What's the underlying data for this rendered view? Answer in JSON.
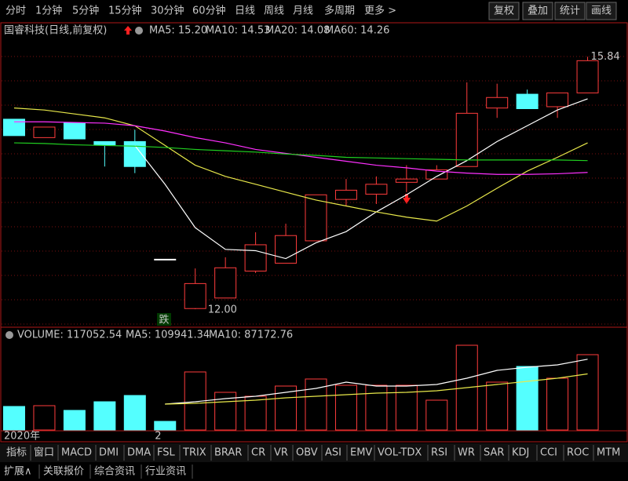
{
  "toolbar": {
    "periods": [
      "分时",
      "1分钟",
      "5分钟",
      "15分钟",
      "30分钟",
      "60分钟",
      "日线",
      "周线",
      "月线",
      "多周期",
      "更多 >"
    ],
    "active": "日线",
    "actions": [
      "复权",
      "叠加",
      "统计",
      "画线"
    ]
  },
  "chart_data": {
    "type": "candlestick",
    "title": "国睿科技(日线,前复权)",
    "up_color": "#ff3c3c",
    "down_color": "#54ffff",
    "flat_color": "#ffffff",
    "dates": [
      "2020年",
      null,
      null,
      null,
      null,
      "2",
      null,
      null,
      null,
      null,
      null,
      null,
      null,
      null,
      null,
      null,
      null,
      null,
      null,
      null
    ],
    "candles": [
      {
        "open": 14.89,
        "high": 14.89,
        "low": 14.64,
        "close": 14.64
      },
      {
        "open": 14.61,
        "high": 14.77,
        "low": 14.61,
        "close": 14.77
      },
      {
        "open": 14.83,
        "high": 14.83,
        "low": 14.59,
        "close": 14.59
      },
      {
        "open": 14.55,
        "high": 14.55,
        "low": 14.17,
        "close": 14.5
      },
      {
        "open": 14.55,
        "high": 14.73,
        "low": 14.07,
        "close": 14.17
      },
      {
        "open": 12.76,
        "high": 12.76,
        "low": 12.76,
        "close": 12.76
      },
      {
        "open": 12.01,
        "high": 12.62,
        "low": 12,
        "close": 12.39
      },
      {
        "open": 12.17,
        "high": 12.79,
        "low": 12.17,
        "close": 12.63
      },
      {
        "open": 12.58,
        "high": 13.17,
        "low": 12.55,
        "close": 12.98
      },
      {
        "open": 12.7,
        "high": 13.3,
        "low": 12.7,
        "close": 13.12
      },
      {
        "open": 13.04,
        "high": 13.74,
        "low": 13.04,
        "close": 13.74
      },
      {
        "open": 13.67,
        "high": 13.98,
        "low": 13.57,
        "close": 13.81
      },
      {
        "open": 13.75,
        "high": 14.02,
        "low": 13.6,
        "close": 13.9
      },
      {
        "open": 13.93,
        "high": 14.19,
        "low": 13.78,
        "close": 13.98
      },
      {
        "open": 13.98,
        "high": 14.19,
        "low": 13.98,
        "close": 14.12
      },
      {
        "open": 14.17,
        "high": 15.45,
        "low": 14.17,
        "close": 14.98
      },
      {
        "open": 15.06,
        "high": 15.43,
        "low": 14.91,
        "close": 15.22
      },
      {
        "open": 15.27,
        "high": 15.34,
        "low": 15.05,
        "close": 15.05
      },
      {
        "open": 15.08,
        "high": 15.29,
        "low": 14.91,
        "close": 15.29
      },
      {
        "open": 15.29,
        "high": 15.84,
        "low": 15.29,
        "close": 15.78
      }
    ],
    "ylim": [
      11.75,
      16.13
    ],
    "series": [
      {
        "label": "MA5: 15.20",
        "color": "#ffffff",
        "values": [
          null,
          null,
          null,
          null,
          14.49,
          13.9,
          13.24,
          12.91,
          12.89,
          12.77,
          13.01,
          13.18,
          13.48,
          13.74,
          14.02,
          14.26,
          14.55,
          14.79,
          15.03,
          15.2
        ]
      },
      {
        "label": "MA10: 14.53",
        "color": "#e8e84a",
        "values": [
          15.06,
          15.03,
          14.97,
          14.91,
          14.79,
          14.49,
          14.19,
          14.02,
          13.9,
          13.78,
          13.66,
          13.57,
          13.48,
          13.4,
          13.34,
          13.57,
          13.84,
          14.1,
          14.31,
          14.53
        ]
      },
      {
        "label": "MA20: 14.08",
        "color": "#ff30ff",
        "values": [
          14.85,
          14.85,
          14.84,
          14.83,
          14.79,
          14.71,
          14.61,
          14.53,
          14.43,
          14.37,
          14.31,
          14.25,
          14.19,
          14.15,
          14.1,
          14.07,
          14.05,
          14.05,
          14.06,
          14.08
        ]
      },
      {
        "label": "MA60: 14.26",
        "color": "#20d020",
        "values": [
          14.53,
          14.52,
          14.5,
          14.49,
          14.48,
          14.46,
          14.43,
          14.41,
          14.39,
          14.36,
          14.34,
          14.31,
          14.3,
          14.29,
          14.28,
          14.27,
          14.27,
          14.27,
          14.27,
          14.26
        ]
      }
    ],
    "annotations": [
      {
        "value": 15.84,
        "label": "15.84"
      },
      {
        "value": 12,
        "label": "12.00"
      },
      {
        "label": "跌"
      }
    ]
  },
  "volume_chart": {
    "type": "bar",
    "ylim": [
      0,
      134120
    ],
    "values": [
      36580,
      37800,
      30480,
      43890,
      53640,
      13410,
      90230,
      58530,
      52430,
      68280,
      79250,
      69500,
      69500,
      69500,
      46330,
      131680,
      74380,
      98760,
      80470,
      117052.54
    ],
    "legend": "VOLUME: 117052.54",
    "series": [
      {
        "label": "MA5: 109941.34",
        "color": "#ffffff",
        "values": [
          null,
          null,
          null,
          null,
          null,
          40240,
          43890,
          48770,
          52430,
          58530,
          64620,
          74380,
          68280,
          68280,
          70720,
          80470,
          92670,
          97540,
          101200,
          109941.34
        ]
      },
      {
        "label": "MA10: 87172.76",
        "color": "#e8e84a",
        "values": [
          null,
          null,
          null,
          null,
          null,
          40240,
          41460,
          43890,
          46330,
          49990,
          52430,
          54870,
          57310,
          58530,
          60960,
          65840,
          70720,
          75600,
          80470,
          87172.76
        ]
      }
    ]
  },
  "tabs": [
    "指标",
    "窗口",
    "MACD",
    "DMI",
    "DMA",
    "FSL",
    "TRIX",
    "BRAR",
    "CR",
    "VR",
    "OBV",
    "ASI",
    "EMV",
    "VOL-TDX",
    "RSI",
    "WR",
    "SAR",
    "KDJ",
    "CCI",
    "ROC",
    "MTM"
  ],
  "footer": [
    "扩展∧",
    "关联报价",
    "综合资讯",
    "行业资讯"
  ]
}
